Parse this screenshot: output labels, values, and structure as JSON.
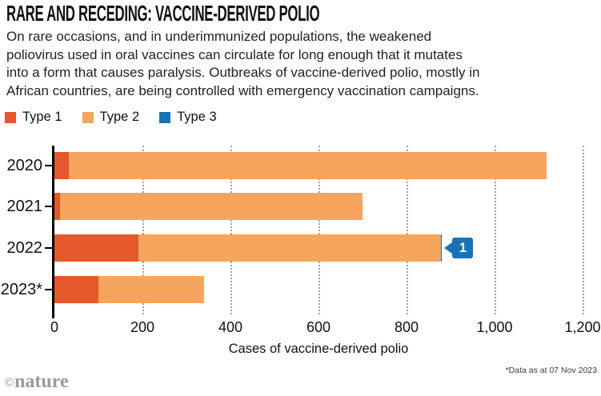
{
  "header": {
    "title": "RARE AND RECEDING: VACCINE-DERIVED POLIO",
    "subtitle_lines": [
      "On rare occasions, and in underimmunized populations, the weakened",
      "poliovirus used in oral vaccines can circulate for long enough that it mutates",
      "into a form that causes paralysis. Outbreaks of vaccine-derived polio, mostly in",
      "African countries, are being controlled with emergency vaccination campaigns."
    ]
  },
  "legend": [
    {
      "label": "Type 1",
      "color": "#e4582b"
    },
    {
      "label": "Type 2",
      "color": "#f5a55c"
    },
    {
      "label": "Type 3",
      "color": "#1673b8"
    }
  ],
  "chart_data": {
    "type": "bar",
    "orientation": "horizontal",
    "stacked": true,
    "categories": [
      "2020",
      "2021",
      "2022",
      "2023*"
    ],
    "series": [
      {
        "name": "Type 1",
        "color": "#e4582b",
        "values": [
          33,
          13,
          190,
          100
        ]
      },
      {
        "name": "Type 2",
        "color": "#f5a55c",
        "values": [
          1085,
          687,
          688,
          240
        ]
      },
      {
        "name": "Type 3",
        "color": "#1673b8",
        "values": [
          0,
          0,
          1,
          0
        ]
      }
    ],
    "totals": [
      1118,
      700,
      879,
      340
    ],
    "xlabel": "Cases of vaccine-derived polio",
    "xlim": [
      0,
      1200
    ],
    "xticks": [
      "0",
      "200",
      "400",
      "600",
      "800",
      "1,000",
      "1,200"
    ],
    "xtick_values": [
      0,
      200,
      400,
      600,
      800,
      1000,
      1200
    ],
    "grid": "vertical-dotted",
    "gridline_color": "#a1a1a1",
    "legend_position": "top",
    "annotation": {
      "text": "1",
      "category": "2022",
      "series": "Type 3",
      "color": "#1673b8"
    }
  },
  "footer": {
    "brand_mark": "©",
    "brand": "nature",
    "footnote": "*Data as at 07 Nov 2023"
  }
}
